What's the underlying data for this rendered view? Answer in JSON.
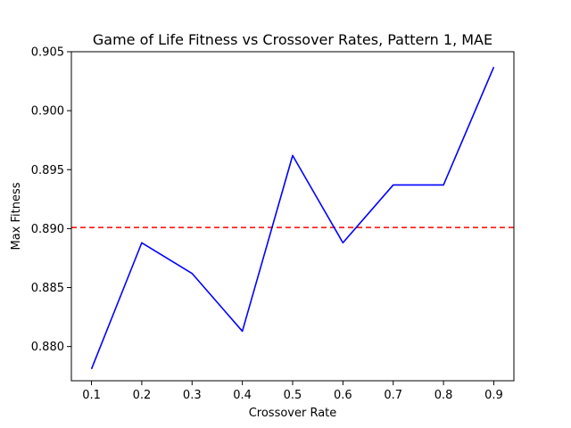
{
  "chart_data": {
    "type": "line",
    "title": "Game of Life Fitness vs Crossover Rates, Pattern 1, MAE",
    "xlabel": "Crossover Rate",
    "ylabel": "Max Fitness",
    "x": [
      0.1,
      0.2,
      0.3,
      0.4,
      0.5,
      0.6,
      0.7,
      0.8,
      0.9
    ],
    "x_ticks": [
      "0.1",
      "0.2",
      "0.3",
      "0.4",
      "0.5",
      "0.6",
      "0.7",
      "0.8",
      "0.9"
    ],
    "y_ticks": [
      "0.880",
      "0.885",
      "0.890",
      "0.895",
      "0.900",
      "0.905"
    ],
    "xlim": [
      0.06,
      0.94
    ],
    "ylim": [
      0.8771,
      0.905
    ],
    "series": [
      {
        "color": "#0000ff",
        "values": [
          0.8781,
          0.8888,
          0.8862,
          0.8813,
          0.8962,
          0.8888,
          0.8937,
          0.8937,
          0.9037
        ]
      }
    ],
    "reference_line": {
      "y": 0.8901,
      "color": "#ff0000",
      "style": "dashed"
    },
    "grid": false,
    "legend": "none"
  }
}
